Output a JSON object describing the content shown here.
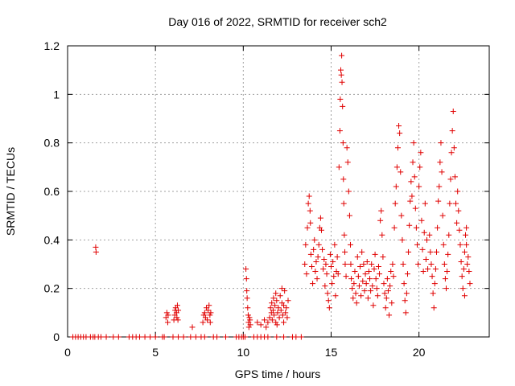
{
  "chart_data": {
    "type": "scatter",
    "title": "Day 016 of 2022, SRMTID for receiver sch2",
    "xlabel": "GPS time / hours",
    "ylabel": "SRMTID / TECUs",
    "xlim": [
      0,
      24
    ],
    "ylim": [
      0,
      1.2
    ],
    "xticks": [
      0,
      5,
      10,
      15,
      20
    ],
    "xtick_labels": [
      "0",
      "5",
      "10",
      "15",
      "20"
    ],
    "yticks": [
      0,
      0.2,
      0.4,
      0.6,
      0.8,
      1.0,
      1.2
    ],
    "ytick_labels": [
      "0",
      "0.2",
      "0.4",
      "0.6",
      "0.8",
      "1",
      "1.2"
    ],
    "grid": true,
    "marker": "+",
    "color": "#e00000",
    "series": [
      {
        "name": "sch2",
        "points": [
          [
            0.3,
            0
          ],
          [
            0.45,
            0
          ],
          [
            0.6,
            0
          ],
          [
            0.75,
            0
          ],
          [
            0.9,
            0
          ],
          [
            1.05,
            0
          ],
          [
            1.3,
            0
          ],
          [
            1.45,
            0
          ],
          [
            1.55,
            0
          ],
          [
            1.75,
            0
          ],
          [
            1.9,
            0
          ],
          [
            2.2,
            0
          ],
          [
            2.6,
            0
          ],
          [
            2.9,
            0
          ],
          [
            3.5,
            0
          ],
          [
            3.7,
            0
          ],
          [
            3.9,
            0
          ],
          [
            4.1,
            0
          ],
          [
            4.4,
            0
          ],
          [
            4.7,
            0
          ],
          [
            5.0,
            0
          ],
          [
            5.4,
            0
          ],
          [
            5.5,
            0
          ],
          [
            6.0,
            0
          ],
          [
            6.3,
            0
          ],
          [
            6.6,
            0
          ],
          [
            7.0,
            0
          ],
          [
            7.3,
            0
          ],
          [
            7.6,
            0
          ],
          [
            7.8,
            0
          ],
          [
            8.3,
            0
          ],
          [
            8.5,
            0
          ],
          [
            9.0,
            0
          ],
          [
            9.6,
            0
          ],
          [
            9.75,
            0
          ],
          [
            9.9,
            0
          ],
          [
            10.0,
            0
          ],
          [
            10.1,
            0
          ],
          [
            10.6,
            0
          ],
          [
            10.8,
            0
          ],
          [
            11.0,
            0
          ],
          [
            11.2,
            0
          ],
          [
            11.4,
            0
          ],
          [
            11.9,
            0
          ],
          [
            12.3,
            0
          ],
          [
            12.8,
            0
          ],
          [
            13.0,
            0
          ],
          [
            13.3,
            0
          ],
          [
            1.6,
            0.37
          ],
          [
            1.62,
            0.35
          ],
          [
            5.6,
            0.08
          ],
          [
            5.65,
            0.1
          ],
          [
            5.7,
            0.06
          ],
          [
            5.72,
            0.09
          ],
          [
            6.05,
            0.07
          ],
          [
            6.1,
            0.09
          ],
          [
            6.12,
            0.11
          ],
          [
            6.15,
            0.12
          ],
          [
            6.2,
            0.1
          ],
          [
            6.22,
            0.08
          ],
          [
            6.25,
            0.13
          ],
          [
            6.28,
            0.07
          ],
          [
            6.3,
            0.11
          ],
          [
            7.1,
            0.04
          ],
          [
            7.7,
            0.06
          ],
          [
            7.75,
            0.09
          ],
          [
            7.8,
            0.1
          ],
          [
            7.85,
            0.08
          ],
          [
            7.9,
            0.12
          ],
          [
            7.95,
            0.07
          ],
          [
            8.0,
            0.11
          ],
          [
            8.05,
            0.13
          ],
          [
            8.1,
            0.09
          ],
          [
            8.12,
            0.06
          ],
          [
            8.15,
            0.1
          ],
          [
            10.15,
            0.28
          ],
          [
            10.18,
            0.24
          ],
          [
            10.2,
            0.19
          ],
          [
            10.22,
            0.16
          ],
          [
            10.25,
            0.12
          ],
          [
            10.28,
            0.09
          ],
          [
            10.3,
            0.06
          ],
          [
            10.32,
            0.04
          ],
          [
            10.35,
            0.08
          ],
          [
            10.38,
            0.07
          ],
          [
            10.4,
            0.05
          ],
          [
            10.8,
            0.06
          ],
          [
            11.0,
            0.05
          ],
          [
            11.2,
            0.07
          ],
          [
            11.3,
            0.04
          ],
          [
            11.4,
            0.06
          ],
          [
            11.5,
            0.08
          ],
          [
            11.55,
            0.12
          ],
          [
            11.6,
            0.1
          ],
          [
            11.62,
            0.14
          ],
          [
            11.65,
            0.07
          ],
          [
            11.7,
            0.11
          ],
          [
            11.72,
            0.16
          ],
          [
            11.75,
            0.09
          ],
          [
            11.8,
            0.13
          ],
          [
            11.85,
            0.06
          ],
          [
            11.9,
            0.15
          ],
          [
            11.95,
            0.1
          ],
          [
            12.0,
            0.12
          ],
          [
            12.05,
            0.08
          ],
          [
            12.1,
            0.17
          ],
          [
            12.15,
            0.11
          ],
          [
            12.2,
            0.14
          ],
          [
            12.25,
            0.09
          ],
          [
            12.3,
            0.13
          ],
          [
            12.35,
            0.19
          ],
          [
            12.4,
            0.1
          ],
          [
            12.45,
            0.12
          ],
          [
            12.5,
            0.08
          ],
          [
            12.55,
            0.15
          ],
          [
            12.3,
            0.06
          ],
          [
            12.2,
            0.2
          ],
          [
            11.85,
            0.18
          ],
          [
            11.92,
            0.05
          ],
          [
            13.5,
            0.3
          ],
          [
            13.55,
            0.38
          ],
          [
            13.6,
            0.26
          ],
          [
            13.65,
            0.45
          ],
          [
            13.7,
            0.55
          ],
          [
            13.75,
            0.58
          ],
          [
            13.8,
            0.52
          ],
          [
            13.82,
            0.47
          ],
          [
            13.85,
            0.34
          ],
          [
            13.9,
            0.29
          ],
          [
            13.95,
            0.22
          ],
          [
            14.0,
            0.36
          ],
          [
            14.05,
            0.4
          ],
          [
            14.1,
            0.27
          ],
          [
            14.15,
            0.31
          ],
          [
            14.2,
            0.24
          ],
          [
            14.25,
            0.33
          ],
          [
            14.3,
            0.38
          ],
          [
            14.35,
            0.45
          ],
          [
            14.4,
            0.49
          ],
          [
            14.45,
            0.44
          ],
          [
            14.5,
            0.36
          ],
          [
            14.55,
            0.28
          ],
          [
            14.6,
            0.32
          ],
          [
            14.65,
            0.21
          ],
          [
            14.7,
            0.3
          ],
          [
            14.75,
            0.26
          ],
          [
            14.8,
            0.18
          ],
          [
            14.85,
            0.15
          ],
          [
            14.9,
            0.12
          ],
          [
            14.95,
            0.34
          ],
          [
            15.0,
            0.29
          ],
          [
            15.05,
            0.22
          ],
          [
            15.1,
            0.31
          ],
          [
            15.15,
            0.25
          ],
          [
            15.2,
            0.38
          ],
          [
            15.25,
            0.17
          ],
          [
            15.3,
            0.27
          ],
          [
            15.35,
            0.33
          ],
          [
            15.4,
            0.26
          ],
          [
            15.45,
            0.7
          ],
          [
            15.5,
            0.85
          ],
          [
            15.52,
            0.98
          ],
          [
            15.55,
            1.1
          ],
          [
            15.58,
            1.08
          ],
          [
            15.6,
            1.16
          ],
          [
            15.62,
            1.05
          ],
          [
            15.65,
            0.95
          ],
          [
            15.68,
            0.8
          ],
          [
            15.7,
            0.65
          ],
          [
            15.72,
            0.55
          ],
          [
            15.75,
            0.42
          ],
          [
            15.78,
            0.35
          ],
          [
            15.8,
            0.3
          ],
          [
            15.85,
            0.25
          ],
          [
            15.9,
            0.78
          ],
          [
            15.95,
            0.72
          ],
          [
            16.0,
            0.6
          ],
          [
            16.05,
            0.5
          ],
          [
            16.1,
            0.38
          ],
          [
            16.12,
            0.3
          ],
          [
            16.15,
            0.24
          ],
          [
            16.2,
            0.2
          ],
          [
            16.25,
            0.16
          ],
          [
            16.3,
            0.22
          ],
          [
            16.35,
            0.27
          ],
          [
            16.4,
            0.18
          ],
          [
            16.45,
            0.14
          ],
          [
            16.5,
            0.33
          ],
          [
            16.55,
            0.25
          ],
          [
            16.6,
            0.21
          ],
          [
            16.65,
            0.29
          ],
          [
            16.7,
            0.17
          ],
          [
            16.75,
            0.35
          ],
          [
            16.8,
            0.23
          ],
          [
            16.85,
            0.3
          ],
          [
            16.9,
            0.19
          ],
          [
            16.95,
            0.26
          ],
          [
            17.0,
            0.22
          ],
          [
            17.05,
            0.31
          ],
          [
            17.1,
            0.16
          ],
          [
            17.15,
            0.27
          ],
          [
            17.2,
            0.24
          ],
          [
            17.25,
            0.19
          ],
          [
            17.3,
            0.3
          ],
          [
            17.35,
            0.21
          ],
          [
            17.4,
            0.13
          ],
          [
            17.45,
            0.28
          ],
          [
            17.5,
            0.34
          ],
          [
            17.55,
            0.24
          ],
          [
            17.6,
            0.2
          ],
          [
            17.65,
            0.17
          ],
          [
            17.7,
            0.29
          ],
          [
            17.75,
            0.26
          ],
          [
            17.8,
            0.48
          ],
          [
            17.85,
            0.52
          ],
          [
            17.9,
            0.42
          ],
          [
            17.95,
            0.33
          ],
          [
            18.0,
            0.22
          ],
          [
            18.05,
            0.18
          ],
          [
            18.1,
            0.12
          ],
          [
            18.15,
            0.16
          ],
          [
            18.2,
            0.24
          ],
          [
            18.25,
            0.19
          ],
          [
            18.3,
            0.09
          ],
          [
            18.35,
            0.21
          ],
          [
            18.4,
            0.27
          ],
          [
            18.45,
            0.14
          ],
          [
            18.5,
            0.3
          ],
          [
            18.55,
            0.25
          ],
          [
            18.6,
            0.45
          ],
          [
            18.65,
            0.55
          ],
          [
            18.7,
            0.62
          ],
          [
            18.75,
            0.7
          ],
          [
            18.8,
            0.78
          ],
          [
            18.85,
            0.87
          ],
          [
            18.9,
            0.84
          ],
          [
            18.95,
            0.68
          ],
          [
            19.0,
            0.5
          ],
          [
            19.05,
            0.4
          ],
          [
            19.1,
            0.3
          ],
          [
            19.15,
            0.22
          ],
          [
            19.2,
            0.15
          ],
          [
            19.25,
            0.1
          ],
          [
            19.3,
            0.18
          ],
          [
            19.35,
            0.26
          ],
          [
            19.4,
            0.35
          ],
          [
            19.45,
            0.46
          ],
          [
            19.5,
            0.56
          ],
          [
            19.55,
            0.64
          ],
          [
            19.6,
            0.58
          ],
          [
            19.65,
            0.72
          ],
          [
            19.7,
            0.8
          ],
          [
            19.75,
            0.66
          ],
          [
            19.8,
            0.53
          ],
          [
            19.85,
            0.45
          ],
          [
            19.9,
            0.38
          ],
          [
            19.95,
            0.3
          ],
          [
            20.0,
            0.62
          ],
          [
            20.05,
            0.7
          ],
          [
            20.1,
            0.76
          ],
          [
            20.15,
            0.48
          ],
          [
            20.2,
            0.36
          ],
          [
            20.25,
            0.27
          ],
          [
            20.3,
            0.43
          ],
          [
            20.35,
            0.55
          ],
          [
            20.4,
            0.32
          ],
          [
            20.45,
            0.4
          ],
          [
            20.5,
            0.28
          ],
          [
            20.6,
            0.42
          ],
          [
            20.65,
            0.35
          ],
          [
            20.7,
            0.3
          ],
          [
            20.75,
            0.25
          ],
          [
            20.8,
            0.18
          ],
          [
            20.85,
            0.12
          ],
          [
            20.9,
            0.22
          ],
          [
            20.95,
            0.28
          ],
          [
            21.0,
            0.35
          ],
          [
            21.05,
            0.45
          ],
          [
            21.1,
            0.56
          ],
          [
            21.15,
            0.62
          ],
          [
            21.2,
            0.72
          ],
          [
            21.25,
            0.8
          ],
          [
            21.3,
            0.68
          ],
          [
            21.35,
            0.5
          ],
          [
            21.4,
            0.38
          ],
          [
            21.45,
            0.3
          ],
          [
            21.5,
            0.24
          ],
          [
            21.55,
            0.2
          ],
          [
            21.6,
            0.27
          ],
          [
            21.65,
            0.34
          ],
          [
            21.7,
            0.42
          ],
          [
            21.75,
            0.55
          ],
          [
            21.8,
            0.65
          ],
          [
            21.85,
            0.76
          ],
          [
            21.9,
            0.85
          ],
          [
            21.95,
            0.93
          ],
          [
            22.0,
            0.78
          ],
          [
            22.05,
            0.66
          ],
          [
            22.1,
            0.55
          ],
          [
            22.15,
            0.47
          ],
          [
            22.2,
            0.6
          ],
          [
            22.25,
            0.52
          ],
          [
            22.3,
            0.44
          ],
          [
            22.35,
            0.38
          ],
          [
            22.4,
            0.31
          ],
          [
            22.45,
            0.25
          ],
          [
            22.5,
            0.2
          ],
          [
            22.55,
            0.28
          ],
          [
            22.6,
            0.35
          ],
          [
            22.65,
            0.42
          ],
          [
            22.7,
            0.38
          ],
          [
            22.75,
            0.3
          ],
          [
            22.8,
            0.33
          ],
          [
            22.85,
            0.27
          ],
          [
            22.9,
            0.22
          ],
          [
            22.6,
            0.17
          ],
          [
            22.7,
            0.45
          ]
        ]
      }
    ]
  }
}
